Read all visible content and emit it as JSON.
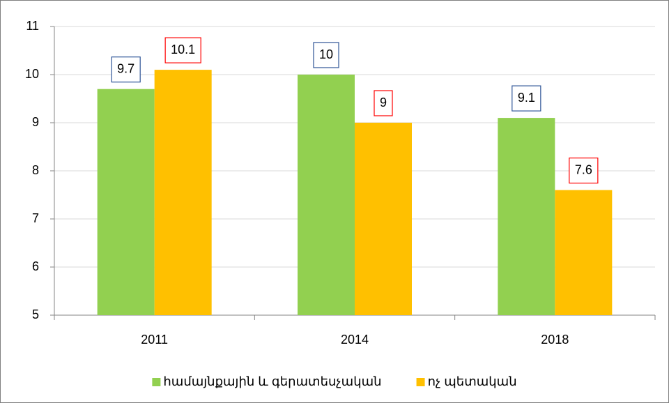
{
  "chart_data": {
    "type": "bar",
    "categories": [
      "2011",
      "2014",
      "2018"
    ],
    "series": [
      {
        "name": "համայնքային և գերատեսչական",
        "color": "#92d050",
        "label_border_color": "#2f5597",
        "values": [
          9.7,
          10,
          9.1
        ]
      },
      {
        "name": "ոչ պետական",
        "color": "#ffc000",
        "label_border_color": "#ff0000",
        "values": [
          10.1,
          9,
          7.6
        ]
      }
    ],
    "ylim": [
      5,
      11
    ],
    "yticks": [
      5,
      6,
      7,
      8,
      9,
      10,
      11
    ],
    "grid": true,
    "legend": "bottom"
  }
}
